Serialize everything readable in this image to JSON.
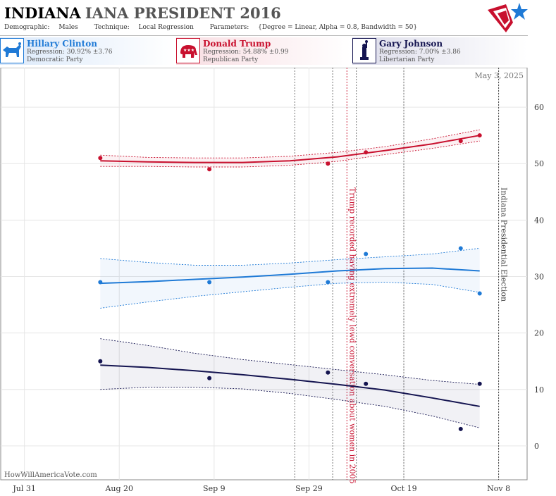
{
  "header": {
    "state": "INDIANA",
    "title_rest": "IANA PRESIDENT 2016",
    "meta": {
      "demographic_label": "Demographic:",
      "demographic": "Males",
      "technique_label": "Technique:",
      "technique": "Local Regression",
      "parameters_label": "Parameters:",
      "parameters": "{Degree = Linear, Alpha = 0.8, Bandwidth = 50}"
    }
  },
  "candidates": [
    {
      "name": "Hillary Clinton",
      "regression": "Regression: 30.92% ±3.76",
      "party": "Democratic Party",
      "icon": "donkey-icon",
      "color": "#1f7ad6"
    },
    {
      "name": "Donald Trump",
      "regression": "Regression: 54.88% ±0.99",
      "party": "Republican Party",
      "icon": "elephant-icon",
      "color": "#c8102e"
    },
    {
      "name": "Gary Johnson",
      "regression": "Regression: 7.00% ±3.86",
      "party": "Libertarian Party",
      "icon": "liberty-icon",
      "color": "#141450"
    }
  ],
  "date_stamp": "May 3, 2025",
  "credit": "HowWillAmericaVote.com",
  "chart_data": {
    "type": "line",
    "x_ticks": [
      {
        "label": "Jul 31",
        "x": "2016-07-31"
      },
      {
        "label": "Aug 20",
        "x": "2016-08-20"
      },
      {
        "label": "Sep 9",
        "x": "2016-09-09"
      },
      {
        "label": "Sep 29",
        "x": "2016-09-29"
      },
      {
        "label": "Oct 19",
        "x": "2016-10-19"
      },
      {
        "label": "Nov 8",
        "x": "2016-11-08"
      }
    ],
    "xlim": [
      "2016-07-26",
      "2016-11-14"
    ],
    "ylim": [
      -6,
      67
    ],
    "y_ticks": [
      0,
      10,
      20,
      30,
      40,
      50,
      60
    ],
    "grid": true,
    "vlines": [
      "2016-09-26",
      "2016-10-04",
      "2016-10-09",
      "2016-10-19",
      "2016-11-08"
    ],
    "events": [
      {
        "x": "2016-10-07",
        "label": "Trump recorded having extremely lewd conversation about women in 2005",
        "color": "#c8102e"
      },
      {
        "x": "2016-11-08",
        "label": "Indiana Presidential Election",
        "color": "#444444"
      }
    ],
    "series": [
      {
        "name": "Donald Trump",
        "color": "#c8102e",
        "band_color": "#c8102e",
        "points": [
          [
            "2016-08-16",
            51
          ],
          [
            "2016-09-08",
            49
          ],
          [
            "2016-10-03",
            50
          ],
          [
            "2016-10-11",
            52
          ],
          [
            "2016-10-31",
            54
          ],
          [
            "2016-11-04",
            55
          ]
        ],
        "fit": [
          [
            "2016-08-16",
            50.5
          ],
          [
            "2016-08-26",
            50.3
          ],
          [
            "2016-09-05",
            50.2
          ],
          [
            "2016-09-15",
            50.2
          ],
          [
            "2016-09-25",
            50.5
          ],
          [
            "2016-10-05",
            51.2
          ],
          [
            "2016-10-15",
            52.3
          ],
          [
            "2016-10-25",
            53.5
          ],
          [
            "2016-11-04",
            55.0
          ]
        ],
        "upper": [
          [
            "2016-08-16",
            51.5
          ],
          [
            "2016-08-26",
            51.1
          ],
          [
            "2016-09-05",
            51.0
          ],
          [
            "2016-09-15",
            51.0
          ],
          [
            "2016-09-25",
            51.3
          ],
          [
            "2016-10-05",
            52.0
          ],
          [
            "2016-10-15",
            53.0
          ],
          [
            "2016-10-25",
            54.4
          ],
          [
            "2016-11-04",
            56.0
          ]
        ],
        "lower": [
          [
            "2016-08-16",
            49.5
          ],
          [
            "2016-08-26",
            49.5
          ],
          [
            "2016-09-05",
            49.4
          ],
          [
            "2016-09-15",
            49.4
          ],
          [
            "2016-09-25",
            49.7
          ],
          [
            "2016-10-05",
            50.4
          ],
          [
            "2016-10-15",
            51.6
          ],
          [
            "2016-10-25",
            52.7
          ],
          [
            "2016-11-04",
            54.0
          ]
        ]
      },
      {
        "name": "Hillary Clinton",
        "color": "#1f7ad6",
        "band_color": "#1f7ad6",
        "points": [
          [
            "2016-08-16",
            29
          ],
          [
            "2016-09-08",
            29
          ],
          [
            "2016-10-03",
            29
          ],
          [
            "2016-10-11",
            34
          ],
          [
            "2016-10-31",
            35
          ],
          [
            "2016-11-04",
            27
          ]
        ],
        "fit": [
          [
            "2016-08-16",
            28.8
          ],
          [
            "2016-08-26",
            29.1
          ],
          [
            "2016-09-05",
            29.5
          ],
          [
            "2016-09-15",
            29.9
          ],
          [
            "2016-09-25",
            30.4
          ],
          [
            "2016-10-05",
            31.0
          ],
          [
            "2016-10-15",
            31.4
          ],
          [
            "2016-10-25",
            31.5
          ],
          [
            "2016-11-04",
            31.0
          ]
        ],
        "upper": [
          [
            "2016-08-16",
            33.2
          ],
          [
            "2016-08-26",
            32.5
          ],
          [
            "2016-09-05",
            32.0
          ],
          [
            "2016-09-15",
            32.0
          ],
          [
            "2016-09-25",
            32.4
          ],
          [
            "2016-10-05",
            33.0
          ],
          [
            "2016-10-15",
            33.5
          ],
          [
            "2016-10-25",
            34.0
          ],
          [
            "2016-11-04",
            35.0
          ]
        ],
        "lower": [
          [
            "2016-08-16",
            24.4
          ],
          [
            "2016-08-26",
            25.5
          ],
          [
            "2016-09-05",
            26.5
          ],
          [
            "2016-09-15",
            27.3
          ],
          [
            "2016-09-25",
            28.1
          ],
          [
            "2016-10-05",
            28.8
          ],
          [
            "2016-10-15",
            29.0
          ],
          [
            "2016-10-25",
            28.6
          ],
          [
            "2016-11-04",
            27.2
          ]
        ]
      },
      {
        "name": "Gary Johnson",
        "color": "#141450",
        "band_color": "#141450",
        "points": [
          [
            "2016-08-16",
            15
          ],
          [
            "2016-09-08",
            12
          ],
          [
            "2016-10-03",
            13
          ],
          [
            "2016-10-11",
            11
          ],
          [
            "2016-10-31",
            3
          ],
          [
            "2016-11-04",
            11
          ]
        ],
        "fit": [
          [
            "2016-08-16",
            14.3
          ],
          [
            "2016-08-26",
            13.9
          ],
          [
            "2016-09-05",
            13.3
          ],
          [
            "2016-09-15",
            12.6
          ],
          [
            "2016-09-25",
            11.8
          ],
          [
            "2016-10-05",
            10.9
          ],
          [
            "2016-10-15",
            9.9
          ],
          [
            "2016-10-25",
            8.5
          ],
          [
            "2016-11-04",
            7.0
          ]
        ],
        "upper": [
          [
            "2016-08-16",
            19.0
          ],
          [
            "2016-08-26",
            17.8
          ],
          [
            "2016-09-05",
            16.4
          ],
          [
            "2016-09-15",
            15.3
          ],
          [
            "2016-09-25",
            14.4
          ],
          [
            "2016-10-05",
            13.5
          ],
          [
            "2016-10-15",
            12.6
          ],
          [
            "2016-10-25",
            11.6
          ],
          [
            "2016-11-04",
            10.9
          ]
        ],
        "lower": [
          [
            "2016-08-16",
            10.0
          ],
          [
            "2016-08-26",
            10.4
          ],
          [
            "2016-09-05",
            10.4
          ],
          [
            "2016-09-15",
            10.1
          ],
          [
            "2016-09-25",
            9.3
          ],
          [
            "2016-10-05",
            8.2
          ],
          [
            "2016-10-15",
            7.0
          ],
          [
            "2016-10-25",
            5.3
          ],
          [
            "2016-11-04",
            3.2
          ]
        ]
      }
    ]
  }
}
